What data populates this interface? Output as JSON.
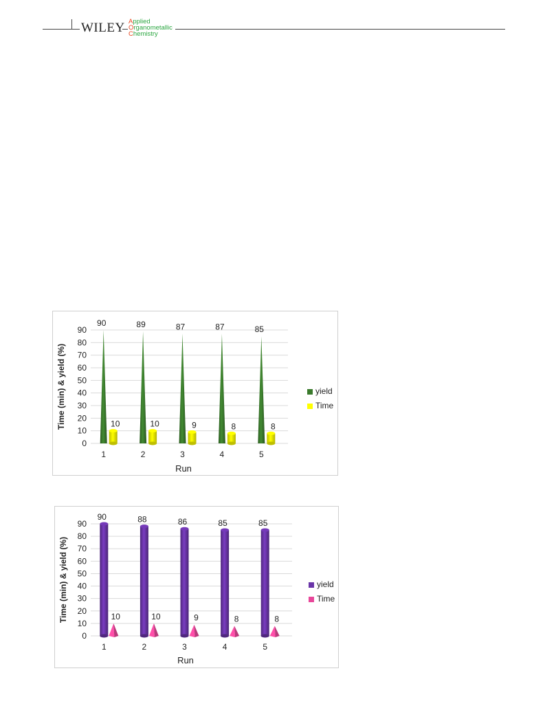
{
  "header": {
    "publisher": "WILEY",
    "journal_lines": [
      "Applied",
      "Organometallic",
      "Chemistry"
    ],
    "journal_initials": [
      "A",
      "O",
      "C"
    ],
    "initial_color": "#e8421b",
    "rest_color": "#2aa640"
  },
  "chart_data": [
    {
      "type": "bar",
      "mark_shape": "cone",
      "categories": [
        "1",
        "2",
        "3",
        "4",
        "5"
      ],
      "series": [
        {
          "name": "yield",
          "values": [
            90,
            89,
            87,
            87,
            85
          ],
          "color": "#3a7a2c",
          "shape": "cone"
        },
        {
          "name": "Time",
          "values": [
            10,
            10,
            9,
            8,
            8
          ],
          "color": "#ffff00",
          "shape": "cylinder"
        }
      ],
      "xlabel": "Run",
      "ylabel": "Time  (min)  & yield (%)",
      "yticks": [
        0,
        10,
        20,
        30,
        40,
        50,
        60,
        70,
        80,
        90
      ],
      "ylim": [
        0,
        90
      ],
      "grid": true,
      "legend": "right"
    },
    {
      "type": "bar",
      "mark_shape": "cylinder",
      "categories": [
        "1",
        "2",
        "3",
        "4",
        "5"
      ],
      "series": [
        {
          "name": "yield",
          "values": [
            90,
            88,
            86,
            85,
            85
          ],
          "color": "#6a35a8",
          "shape": "cylinder"
        },
        {
          "name": "Time",
          "values": [
            10,
            10,
            9,
            8,
            8
          ],
          "color": "#e8479a",
          "shape": "pyramid"
        }
      ],
      "xlabel": "Run",
      "ylabel": "Time  (min)  & yield (%)",
      "yticks": [
        0,
        10,
        20,
        30,
        40,
        50,
        60,
        70,
        80,
        90
      ],
      "ylim": [
        0,
        90
      ],
      "grid": true,
      "legend": "right"
    }
  ]
}
